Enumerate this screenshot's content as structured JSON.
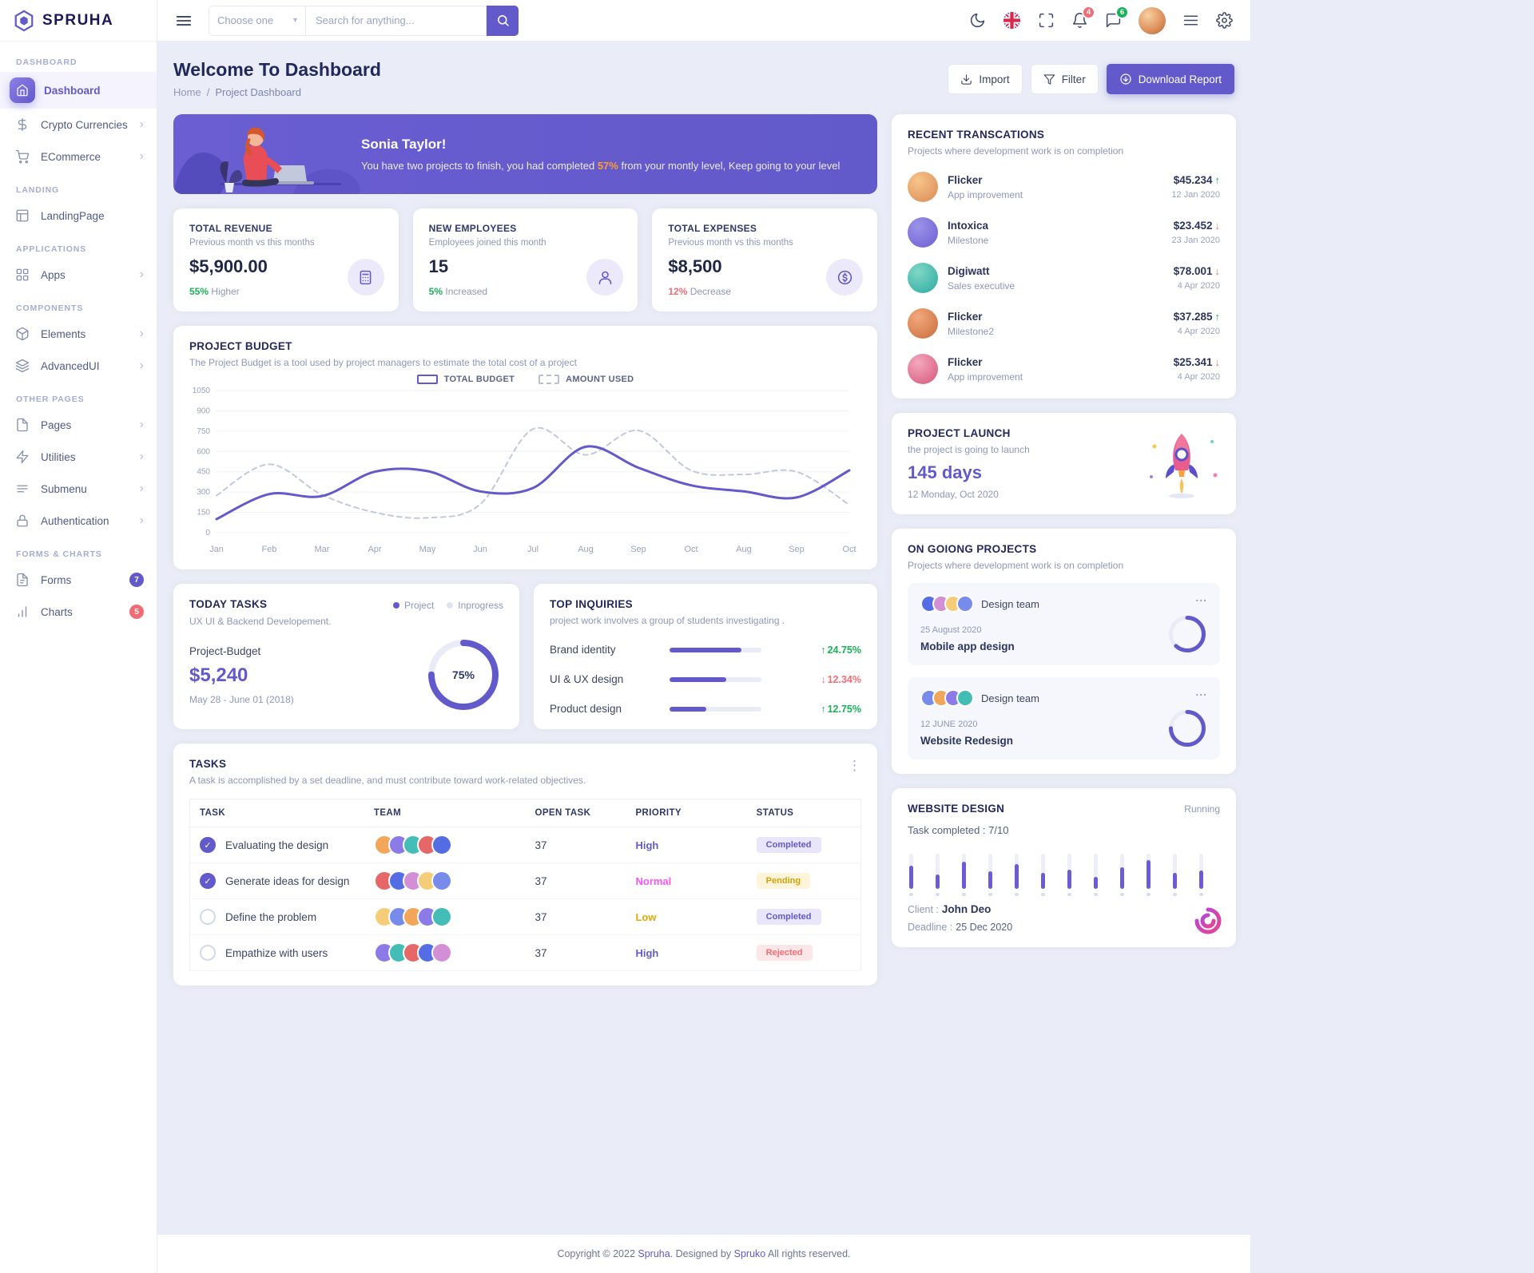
{
  "colors": {
    "primary": "#6259ca",
    "success": "#19b159",
    "danger": "#f16d75",
    "warning": "#d3a10e",
    "pink": "#f754fa",
    "highlight_orange": "#ff9b2f",
    "body_bg": "#eaedf7"
  },
  "icons": {
    "chevron": "›",
    "caret": "▾",
    "kebab": "⋮",
    "ellipsis": "...",
    "check": "✓"
  },
  "brand": {
    "name": "SPRUHA"
  },
  "sidebar": {
    "sections": [
      {
        "label": "DASHBOARD",
        "items": [
          {
            "label": "Dashboard",
            "active": true
          },
          {
            "label": "Crypto Currencies"
          },
          {
            "label": "ECommerce"
          }
        ]
      },
      {
        "label": "LANDING",
        "items": [
          {
            "label": "LandingPage"
          }
        ]
      },
      {
        "label": "APPLICATIONS",
        "items": [
          {
            "label": "Apps"
          }
        ]
      },
      {
        "label": "COMPONENTS",
        "items": [
          {
            "label": "Elements"
          },
          {
            "label": "AdvancedUI"
          }
        ]
      },
      {
        "label": "OTHER PAGES",
        "items": [
          {
            "label": "Pages"
          },
          {
            "label": "Utilities"
          },
          {
            "label": "Submenu"
          },
          {
            "label": "Authentication"
          }
        ]
      },
      {
        "label": "FORMS & CHARTS",
        "items": [
          {
            "label": "Forms",
            "badge": "7",
            "badge_color": "#6259ca"
          },
          {
            "label": "Charts",
            "badge": "5",
            "badge_color": "#f16d75"
          }
        ]
      }
    ]
  },
  "header": {
    "select_value": "Choose one",
    "search_placeholder": "Search for anything...",
    "bell_badge": "4",
    "bell_badge_color": "#f16d75",
    "chat_badge": "6",
    "chat_badge_color": "#19b159"
  },
  "page": {
    "title": "Welcome To Dashboard",
    "breadcrumb": {
      "home": "Home",
      "sep": "/",
      "current": "Project Dashboard"
    },
    "actions": {
      "import": "Import",
      "filter": "Filter",
      "download": "Download Report"
    }
  },
  "banner": {
    "greeting": "Sonia Taylor!",
    "message_pre": "You have two projects to finish, you had completed ",
    "highlight": "57%",
    "message_post": " from your montly level, Keep going to your level"
  },
  "stats": [
    {
      "title": "TOTAL REVENUE",
      "subtitle": "Previous month vs this months",
      "value": "$5,900.00",
      "delta": "55%",
      "delta_note": "Higher",
      "delta_color": "#19b159"
    },
    {
      "title": "NEW EMPLOYEES",
      "subtitle": "Employees joined this month",
      "value": "15",
      "delta": "5%",
      "delta_note": "Increased",
      "delta_color": "#19b159"
    },
    {
      "title": "TOTAL EXPENSES",
      "subtitle": "Previous month vs this months",
      "value": "$8,500",
      "delta": "12%",
      "delta_note": "Decrease",
      "delta_color": "#f16d75"
    }
  ],
  "chart_data": {
    "type": "line",
    "title": "PROJECT BUDGET",
    "subtitle": "The Project Budget is a tool used by project managers to estimate the total cost of a project",
    "x": [
      "Jan",
      "Feb",
      "Mar",
      "Apr",
      "May",
      "Jun",
      "Jul",
      "Aug",
      "Sep",
      "Oct",
      "Aug",
      "Sep",
      "Oct"
    ],
    "y_ticks": [
      0,
      150,
      300,
      450,
      600,
      750,
      900,
      1050
    ],
    "ylim": [
      0,
      1050
    ],
    "grid": true,
    "legend_position": "top",
    "series": [
      {
        "name": "TOTAL BUDGET",
        "style": "solid",
        "color": "#6259ca",
        "values": [
          100,
          285,
          270,
          450,
          455,
          305,
          330,
          635,
          480,
          350,
          305,
          260,
          460
        ]
      },
      {
        "name": "AMOUNT USED",
        "style": "dashed",
        "color": "#c3c8da",
        "values": [
          275,
          505,
          280,
          150,
          110,
          210,
          765,
          575,
          755,
          460,
          430,
          450,
          205
        ]
      }
    ]
  },
  "today_tasks": {
    "title": "TODAY TASKS",
    "legend": [
      {
        "label": "Project",
        "color": "#6259ca"
      },
      {
        "label": "Inprogress",
        "color": "#dfe3ef"
      }
    ],
    "subtitle": "UX UI & Backend Developement.",
    "budget_label": "Project-Budget",
    "budget_value": "$5,240",
    "dates": "May 28 - June 01 (2018)",
    "percent": 75,
    "percent_label": "75%"
  },
  "inquiries": {
    "title": "TOP INQUIRIES",
    "subtitle": "project work involves a group of students investigating .",
    "rows": [
      {
        "label": "Brand identity",
        "progress": 78,
        "arrow": "↑",
        "value": "24.75%",
        "color": "#19b159"
      },
      {
        "label": "UI & UX design",
        "progress": 62,
        "arrow": "↓",
        "value": "12.34%",
        "color": "#f16d75"
      },
      {
        "label": "Product design",
        "progress": 40,
        "arrow": "↑",
        "value": "12.75%",
        "color": "#19b159"
      }
    ]
  },
  "tasks": {
    "title": "TASKS",
    "subtitle": "A task is accomplished by a set deadline, and must contribute toward work-related objectives.",
    "columns": [
      "TASK",
      "TEAM",
      "OPEN TASK",
      "PRIORITY",
      "STATUS"
    ],
    "rows": [
      {
        "task": "Evaluating the design",
        "checked": true,
        "team_count": 5,
        "open": "37",
        "priority": "High",
        "priority_color": "#6259ca",
        "status": "Completed",
        "status_color": "#6259ca",
        "status_bg": "#e9e6fb"
      },
      {
        "task": "Generate ideas for design",
        "checked": true,
        "team_count": 5,
        "open": "37",
        "priority": "Normal",
        "priority_color": "#f754fa",
        "status": "Pending",
        "status_color": "#d3a10e",
        "status_bg": "#fdf4d9"
      },
      {
        "task": "Define the problem",
        "checked": false,
        "team_count": 5,
        "open": "37",
        "priority": "Low",
        "priority_color": "#e0a80f",
        "status": "Completed",
        "status_color": "#6259ca",
        "status_bg": "#e9e6fb"
      },
      {
        "task": "Empathize with users",
        "checked": false,
        "team_count": 5,
        "open": "37",
        "priority": "High",
        "priority_color": "#6259ca",
        "status": "Rejected",
        "status_color": "#f16d75",
        "status_bg": "#fde6e8"
      }
    ]
  },
  "transactions": {
    "title": "RECENT TRANSCATIONS",
    "subtitle": "Projects where development work is on completion",
    "rows": [
      {
        "name": "Flicker",
        "role": "App improvement",
        "amount": "$45.234",
        "arrow": "↑",
        "dir_color": "#19b159",
        "date": "12 Jan 2020"
      },
      {
        "name": "Intoxica",
        "role": "Milestone",
        "amount": "$23.452",
        "arrow": "↓",
        "dir_color": "#f16d75",
        "date": "23 Jan 2020"
      },
      {
        "name": "Digiwatt",
        "role": "Sales executive",
        "amount": "$78.001",
        "arrow": "↓",
        "dir_color": "#f16d75",
        "date": "4 Apr 2020"
      },
      {
        "name": "Flicker",
        "role": "Milestone2",
        "amount": "$37.285",
        "arrow": "↑",
        "dir_color": "#19b159",
        "date": "4 Apr 2020"
      },
      {
        "name": "Flicker",
        "role": "App improvement",
        "amount": "$25.341",
        "arrow": "↓",
        "dir_color": "#f16d75",
        "date": "4 Apr 2020"
      }
    ]
  },
  "launch": {
    "title": "PROJECT LAUNCH",
    "subtitle": "the project is going to launch",
    "days": "145 days",
    "date": "12 Monday, Oct 2020"
  },
  "ongoing": {
    "title": "ON GOIONG PROJECTS",
    "subtitle": "Projects where development work is on completion",
    "projects": [
      {
        "team": "Design team",
        "avatars": 4,
        "date": "25 August 2020",
        "name": "Mobile app design",
        "progress": 62
      },
      {
        "team": "Design team",
        "avatars": 4,
        "date": "12 JUNE 2020",
        "name": "Website Redesign",
        "progress": 75
      }
    ]
  },
  "website": {
    "title": "WEBSITE DESIGN",
    "status": "Running",
    "completed": "Task completed : 7/10",
    "client_label": "Client :",
    "client": "John Deo",
    "deadline_label": "Deadline :",
    "deadline": "25 Dec 2020",
    "bars": [
      65,
      40,
      78,
      50,
      70,
      45,
      55,
      35,
      62,
      82,
      45,
      52
    ]
  },
  "footer": {
    "pre": "Copyright © 2022 ",
    "brand1": "Spruha",
    "mid": ". Designed by ",
    "brand2": "Spruko",
    "post": " All rights reserved."
  }
}
